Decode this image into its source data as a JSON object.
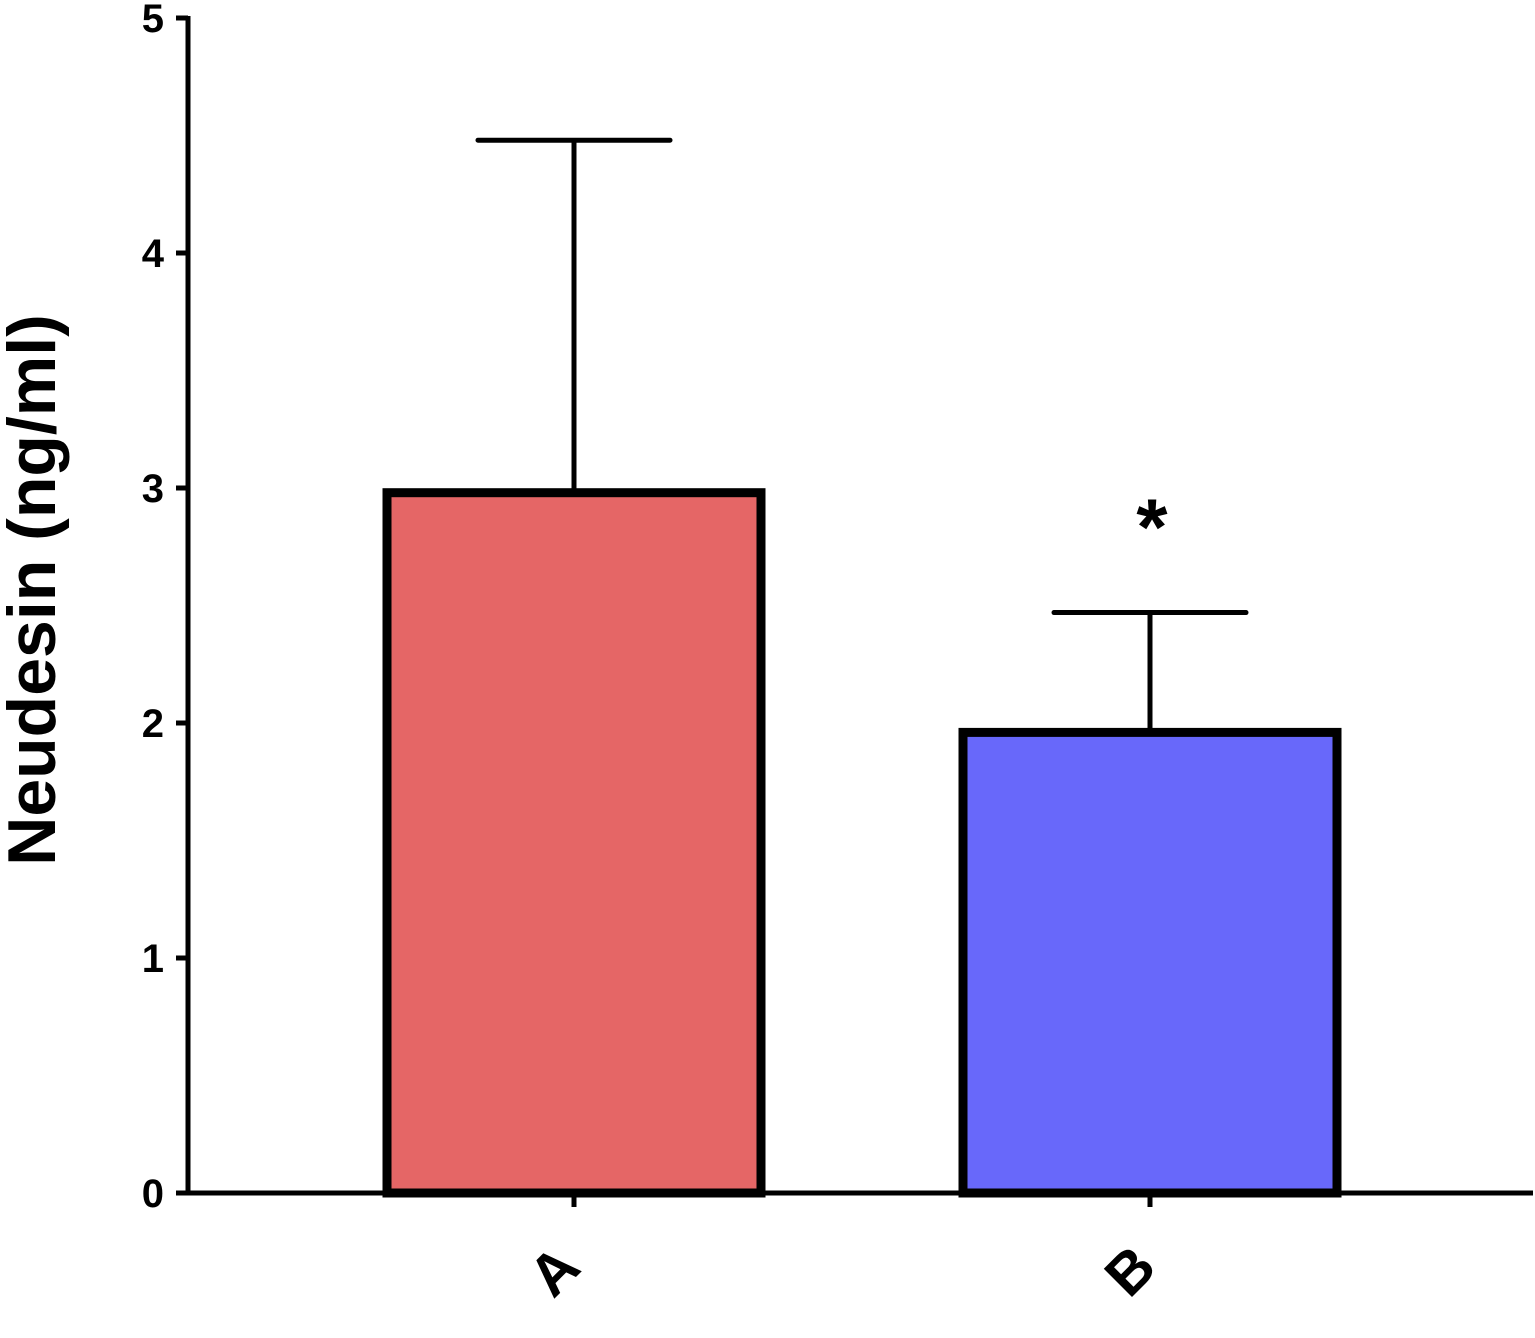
{
  "chart_data": {
    "type": "bar",
    "ylabel": "Neudesin (ng/ml)",
    "ylim": [
      0,
      5
    ],
    "yticks": [
      "0",
      "1",
      "2",
      "3",
      "4",
      "5"
    ],
    "categories": [
      "A",
      "B"
    ],
    "values": [
      2.98,
      1.96
    ],
    "error_upper": [
      4.48,
      2.47
    ],
    "colors": [
      "#e56666",
      "#6868fa"
    ],
    "annotations": [
      {
        "category": "B",
        "text": "*"
      }
    ],
    "grid": false
  }
}
